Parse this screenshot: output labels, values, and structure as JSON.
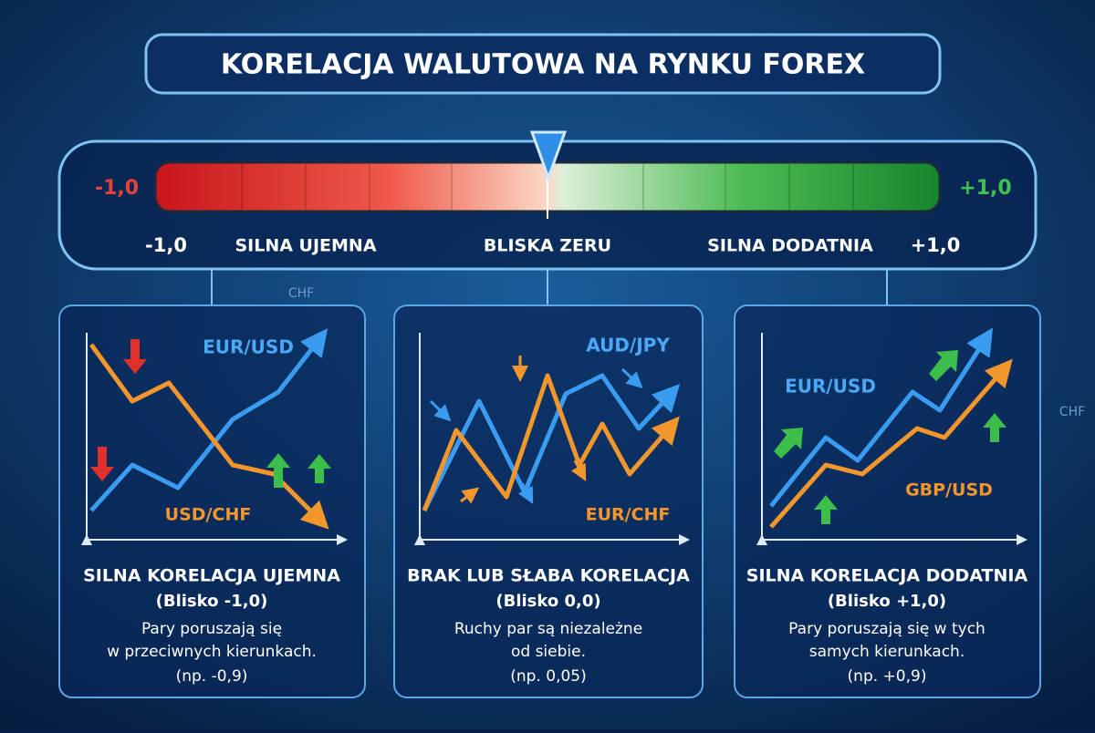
{
  "title": "KORELACJA WALUTOWA NA RYNKU FOREX",
  "scale": {
    "left_end": "-1,0",
    "right_end": "+1,0",
    "labels": [
      "-1,0",
      "SILNA UJEMNA",
      "BLISKA ZERU",
      "SILNA DODATNIA",
      "+1,0"
    ]
  },
  "background_labels": [
    "CHF",
    "CHF"
  ],
  "panels": [
    {
      "series_labels": [
        "EUR/USD",
        "USD/CHF"
      ],
      "heading": "SILNA KORELACJA UJEMNA",
      "subheading": "(Blisko -1,0)",
      "description": [
        "Pary poruszają się",
        "w przeciwnych kierunkach."
      ],
      "example": "(np. -0,9)"
    },
    {
      "series_labels": [
        "AUD/JPY",
        "EUR/CHF"
      ],
      "heading": "BRAK LUB SŁABA KORELACJA",
      "subheading": "(Blisko 0,0)",
      "description": [
        "Ruchy par są niezależne",
        "od siebie."
      ],
      "example": "(np. 0,05)"
    },
    {
      "series_labels": [
        "EUR/USD",
        "GBP/USD"
      ],
      "heading": "SILNA KORELACJA DODATNIA",
      "subheading": "(Blisko +1,0)",
      "description": [
        "Pary poruszają się w tych",
        "samych kierunkach."
      ],
      "example": "(np. +0,9)"
    }
  ]
}
